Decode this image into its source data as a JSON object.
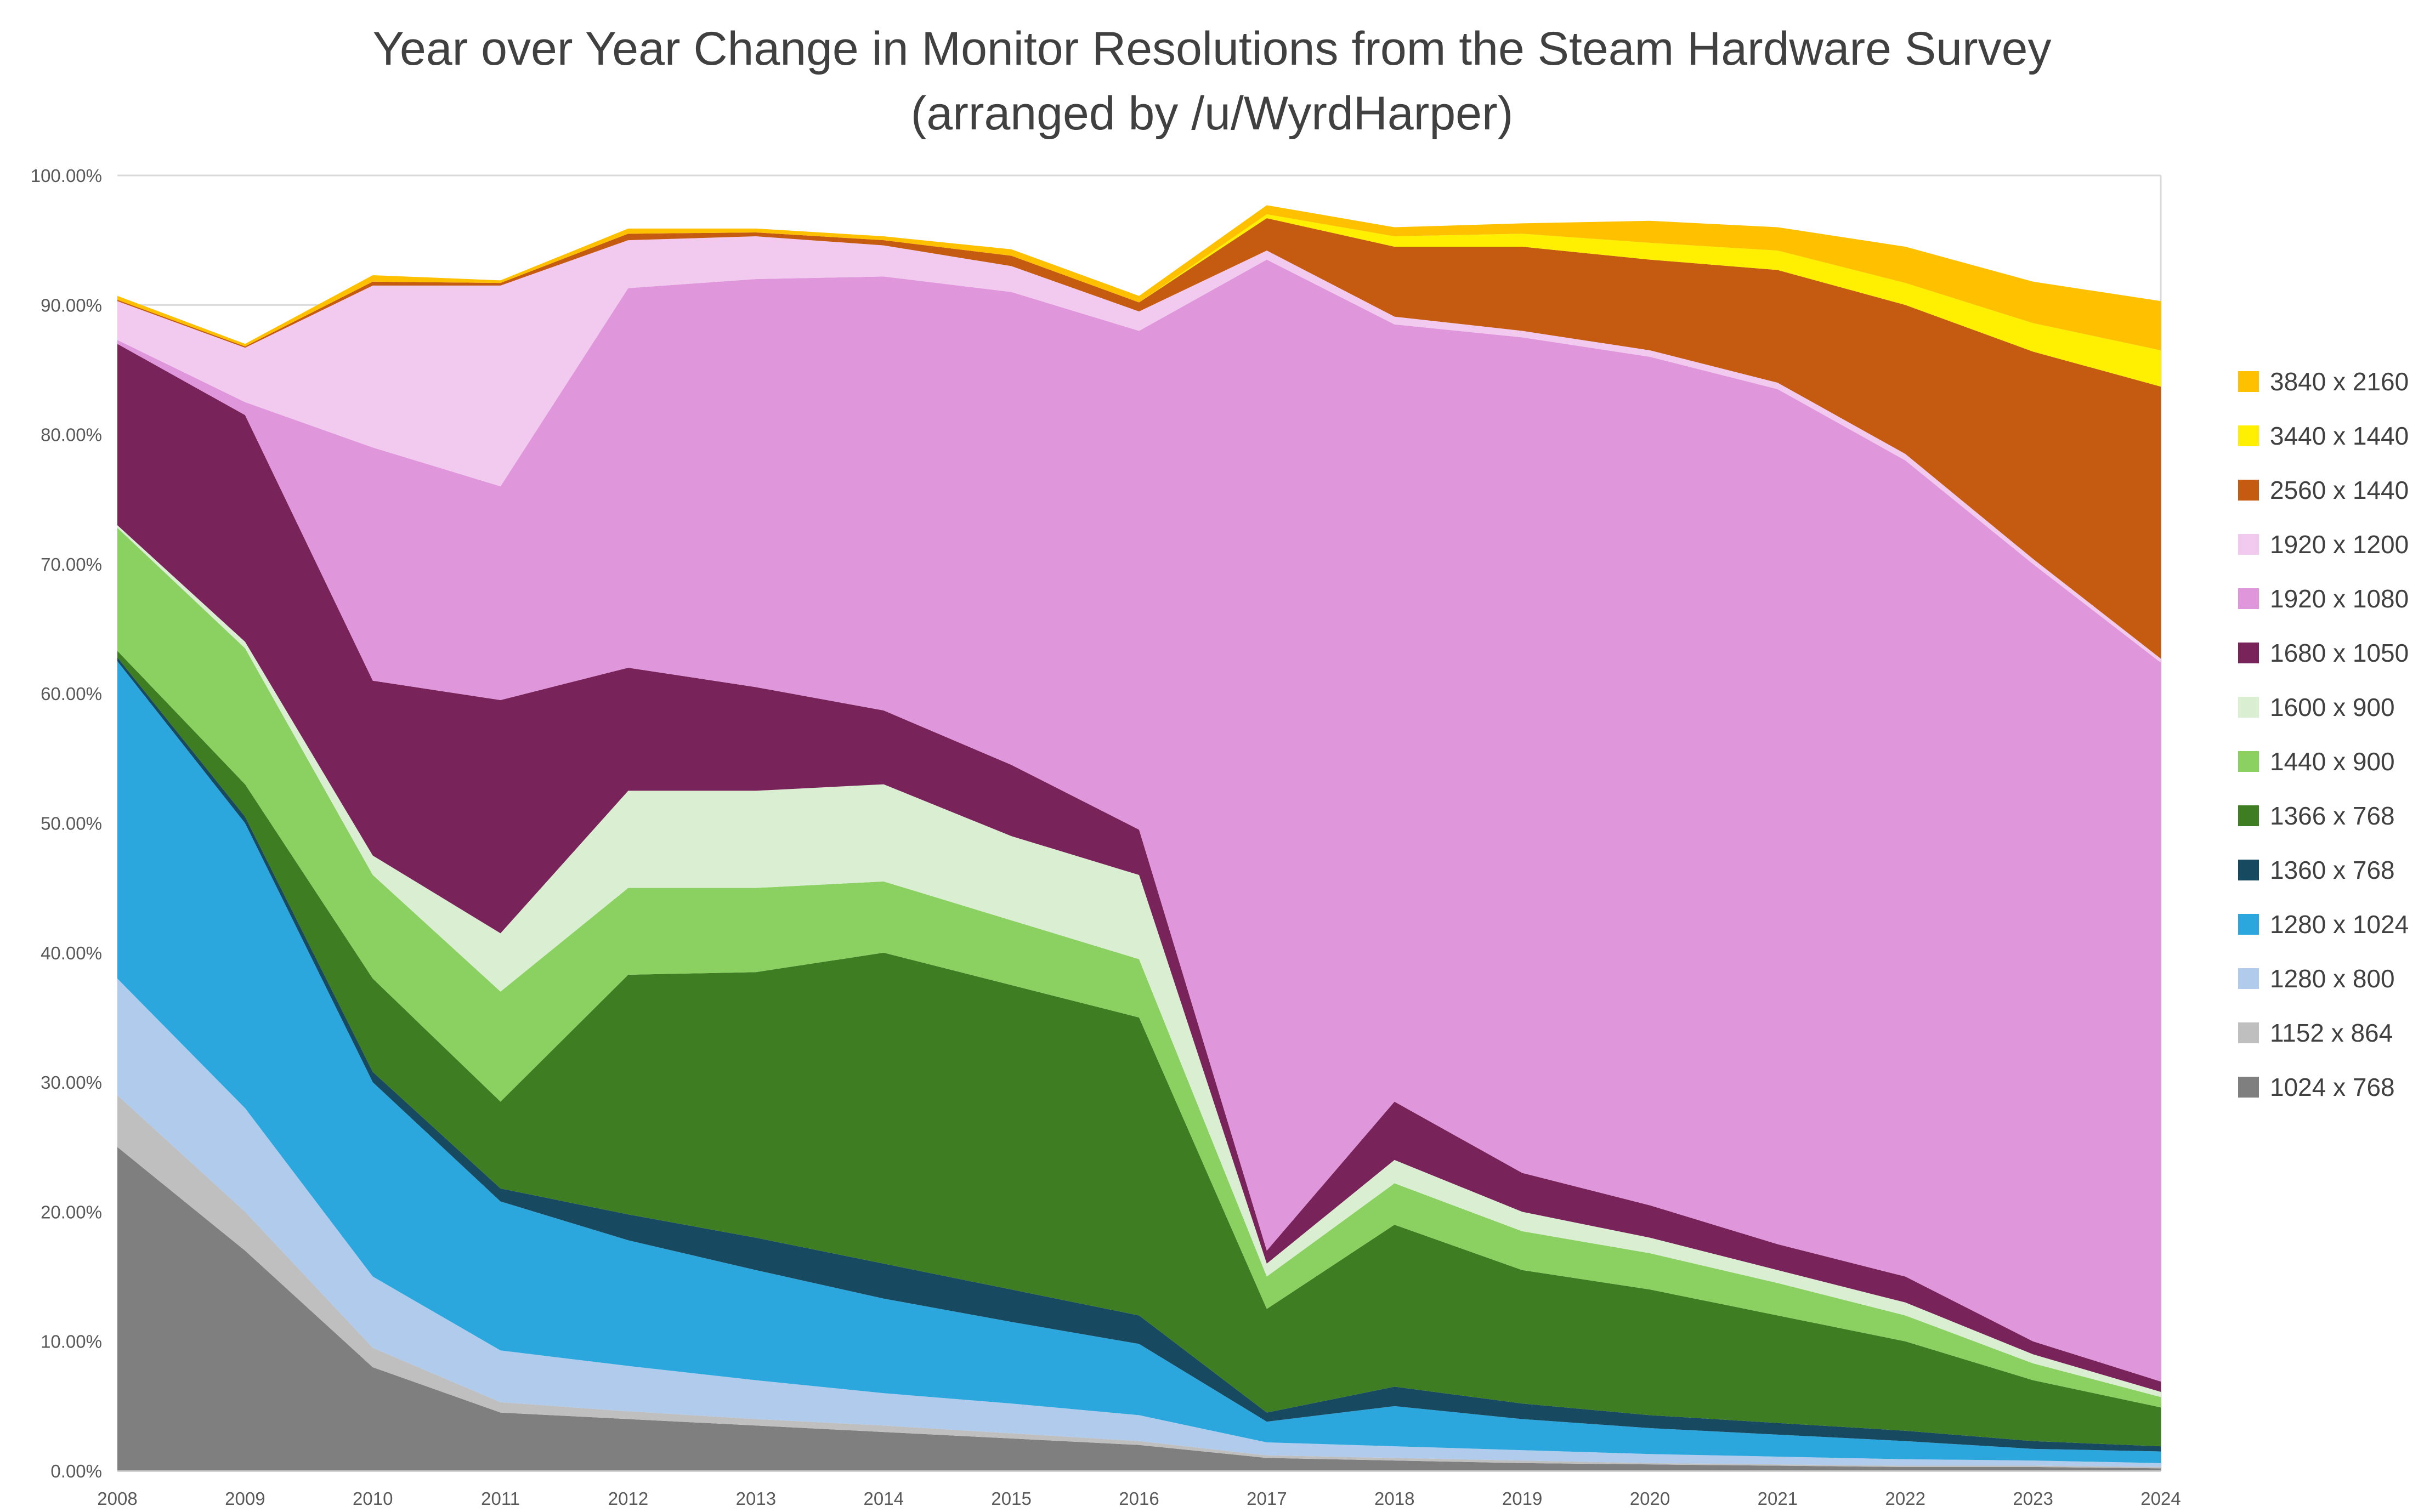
{
  "title": {
    "line1": "Year over Year Change in Monitor Resolutions from the Steam Hardware Survey",
    "line2": "(arranged by /u/WyrdHarper)"
  },
  "colors": {
    "grid": "#D9D9D9",
    "axis_line": "#BFBFBF",
    "axis_text": "#595959",
    "title_text": "#404040",
    "legend_text": "#404040",
    "background": "#FFFFFF"
  },
  "chart_data": {
    "type": "area",
    "stacked": true,
    "title": "Year over Year Change in Monitor Resolutions from the Steam Hardware Survey (arranged by /u/WyrdHarper)",
    "xlabel": "",
    "ylabel": "",
    "ylim": [
      0,
      100
    ],
    "grid": "horizontal",
    "legend_position": "right",
    "yticks": [
      "0.00%",
      "10.00%",
      "20.00%",
      "30.00%",
      "40.00%",
      "50.00%",
      "60.00%",
      "70.00%",
      "80.00%",
      "90.00%",
      "100.00%"
    ],
    "x": [
      2008,
      2009,
      2010,
      2011,
      2012,
      2013,
      2014,
      2015,
      2016,
      2017,
      2018,
      2019,
      2020,
      2021,
      2022,
      2023,
      2024
    ],
    "series": [
      {
        "name": "1024 x 768",
        "color": "#7F7F7F",
        "values": [
          25,
          17,
          8,
          4.5,
          4,
          3.5,
          3,
          2.5,
          2,
          1,
          0.8,
          0.6,
          0.5,
          0.4,
          0.3,
          0.3,
          0.2
        ]
      },
      {
        "name": "1152 x 864",
        "color": "#BFBFBF",
        "values": [
          4,
          3,
          1.5,
          0.8,
          0.6,
          0.5,
          0.5,
          0.4,
          0.3,
          0.2,
          0.2,
          0.2,
          0.1,
          0.1,
          0.1,
          0.1,
          0.1
        ]
      },
      {
        "name": "1280 x 800",
        "color": "#B0CBEB",
        "values": [
          9,
          8,
          5.5,
          4,
          3.5,
          3,
          2.5,
          2.3,
          2,
          1,
          0.9,
          0.8,
          0.7,
          0.6,
          0.5,
          0.4,
          0.3
        ]
      },
      {
        "name": "1280 x 1024",
        "color": "#2BA7DE",
        "values": [
          24.5,
          22,
          15,
          11.5,
          9.7,
          8.5,
          7.3,
          6.3,
          5.5,
          1.6,
          3.1,
          2.4,
          2,
          1.7,
          1.4,
          0.9,
          0.9
        ]
      },
      {
        "name": "1360 x 768",
        "color": "#174A60",
        "values": [
          0.3,
          0.5,
          0.8,
          1,
          2,
          2.5,
          2.7,
          2.5,
          2.2,
          0.7,
          1.5,
          1.2,
          1,
          0.9,
          0.8,
          0.6,
          0.4
        ]
      },
      {
        "name": "1366 x 768",
        "color": "#3E7D22",
        "values": [
          0.5,
          2.5,
          7.2,
          6.7,
          18.5,
          20.5,
          24,
          23.5,
          23,
          8,
          12.5,
          10.3,
          9.7,
          8.3,
          6.9,
          4.7,
          3
        ]
      },
      {
        "name": "1440 x 900",
        "color": "#8BD162",
        "values": [
          9.5,
          10.5,
          8,
          8.5,
          6.7,
          6.5,
          5.5,
          5,
          4.5,
          2.5,
          3.2,
          3,
          2.8,
          2.5,
          2,
          1.3,
          0.8
        ]
      },
      {
        "name": "1600 x 900",
        "color": "#DAEFD2",
        "values": [
          0.2,
          0.5,
          1.5,
          4.5,
          7.5,
          7.5,
          7.5,
          6.5,
          6.5,
          1,
          1.8,
          1.5,
          1.2,
          1,
          1,
          0.7,
          0.4
        ]
      },
      {
        "name": "1680 x 1050",
        "color": "#79235B",
        "values": [
          14,
          17.5,
          13.5,
          18,
          9.5,
          8,
          5.7,
          5.5,
          3.5,
          1,
          4.5,
          3,
          2.5,
          2,
          2,
          1,
          0.8
        ]
      },
      {
        "name": "1920 x 1080",
        "color": "#E096DB",
        "values": [
          0.3,
          1,
          18,
          16.5,
          29.3,
          31.5,
          33.5,
          36.5,
          38.5,
          76.5,
          60,
          64.5,
          65.5,
          66,
          63,
          60,
          55.5
        ]
      },
      {
        "name": "1920 x 1200",
        "color": "#F2C9EF",
        "values": [
          3,
          4.2,
          12.5,
          15.5,
          3.7,
          3.3,
          2.4,
          2,
          1.5,
          0.7,
          0.6,
          0.5,
          0.5,
          0.5,
          0.5,
          0.4,
          0.3
        ]
      },
      {
        "name": "2560 x 1440",
        "color": "#C55A11",
        "values": [
          0.1,
          0.1,
          0.3,
          0.2,
          0.5,
          0.3,
          0.4,
          0.8,
          0.7,
          2.5,
          5.4,
          6.5,
          7,
          8.7,
          11.5,
          16,
          21
        ]
      },
      {
        "name": "3440 x 1440",
        "color": "#FFEF00",
        "values": [
          0,
          0,
          0,
          0,
          0,
          0,
          0,
          0,
          0,
          0.3,
          0.8,
          1,
          1.3,
          1.5,
          1.7,
          2.2,
          2.8
        ]
      },
      {
        "name": "3840 x 2160",
        "color": "#FFC000",
        "values": [
          0.3,
          0.2,
          0.5,
          0.2,
          0.4,
          0.3,
          0.3,
          0.5,
          0.5,
          0.7,
          0.7,
          0.8,
          1.7,
          1.8,
          2.8,
          3.2,
          3.8
        ]
      }
    ],
    "legend_order": "top-series-first"
  }
}
